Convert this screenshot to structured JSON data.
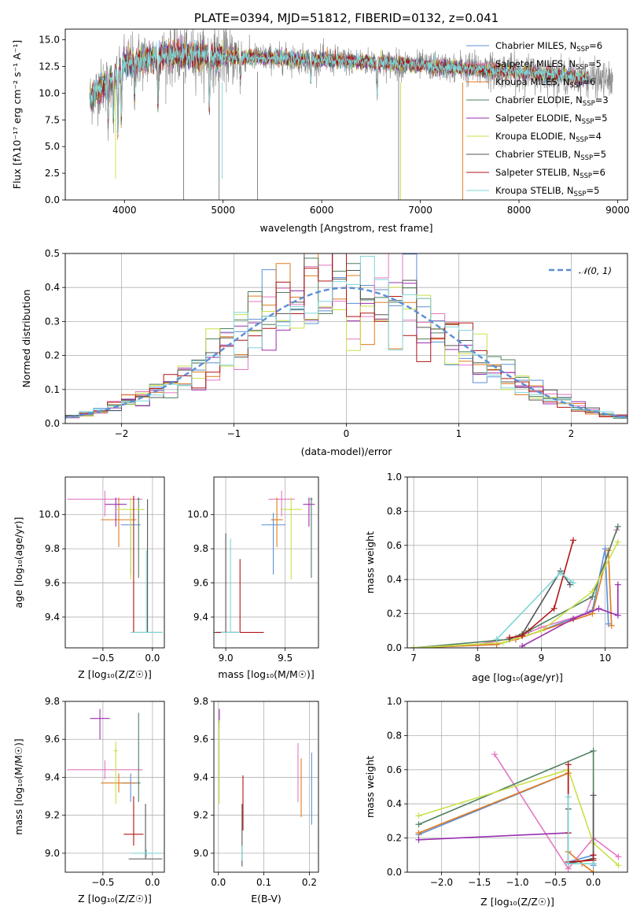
{
  "colors": {
    "chabrier_miles": "#5b8fd6",
    "salpeter_miles": "#e377c2",
    "kroupa_miles": "#e07a1f",
    "chabrier_elodie": "#4f7f5f",
    "salpeter_elodie": "#9a2fae",
    "kroupa_elodie": "#c9e04a",
    "chabrier_stelib": "#555555",
    "salpeter_stelib": "#b01515",
    "kroupa_stelib": "#7fd6d6",
    "observed": "#808080",
    "gauss": "#5b8fd6"
  },
  "chart_data": [
    {
      "id": "spectrum",
      "type": "line",
      "title": "PLATE=0394, MJD=51812, FIBERID=0132, z=0.041",
      "xlabel": "wavelength [Angstrom, rest frame]",
      "ylabel": "Flux [fλ10⁻¹⁷ erg cm⁻² s⁻¹ A⁻¹]",
      "xlim": [
        3400,
        9100
      ],
      "ylim": [
        0,
        16
      ],
      "xticks": [
        "4000",
        "5000",
        "6000",
        "7000",
        "8000",
        "9000"
      ],
      "yticks": [
        "0.0",
        "2.5",
        "5.0",
        "7.5",
        "10.0",
        "12.5",
        "15.0"
      ],
      "legend_position": "upper right",
      "legend": [
        "Chabrier MILES, N_SSP=6",
        "Salpeter MILES, N_SSP=5",
        "Kroupa MILES, N_SSP=6",
        "Chabrier ELODIE, N_SSP=3",
        "Salpeter ELODIE, N_SSP=5",
        "Kroupa ELODIE, N_SSP=4",
        "Chabrier STELIB, N_SSP=5",
        "Salpeter STELIB, N_SSP=6",
        "Kroupa STELIB, N_SSP=5"
      ],
      "continuum": [
        [
          3650,
          9.5
        ],
        [
          3750,
          10.5
        ],
        [
          3900,
          11.5
        ],
        [
          4000,
          12.8
        ],
        [
          4200,
          13.2
        ],
        [
          4500,
          13.6
        ],
        [
          5000,
          13.4
        ],
        [
          5500,
          13.3
        ],
        [
          6000,
          13.1
        ],
        [
          6500,
          12.9
        ],
        [
          7000,
          12.6
        ],
        [
          7500,
          12.3
        ],
        [
          8000,
          12.0
        ],
        [
          8500,
          11.6
        ],
        [
          8900,
          11.2
        ]
      ],
      "observed_range": [
        3650,
        8950
      ],
      "model_range": [
        3650,
        8700
      ]
    },
    {
      "id": "residuals",
      "type": "histogram",
      "xlabel": "(data-model)/error",
      "ylabel": "Normed distribution",
      "xlim": [
        -2.5,
        2.5
      ],
      "ylim": [
        0,
        0.5
      ],
      "xticks": [
        "−2",
        "−1",
        "0",
        "1",
        "2"
      ],
      "yticks": [
        "0.0",
        "0.1",
        "0.2",
        "0.3",
        "0.4",
        "0.5"
      ],
      "legend": [
        "N(0,1)"
      ],
      "legend_position": "upper right",
      "bin_width": 0.125
    },
    {
      "id": "age_vs_Z",
      "type": "errorbar",
      "xlabel": "Z [log10(Z/Z☉)]",
      "ylabel": "age  [log10(age/yr)]",
      "xlim": [
        -0.88,
        0.12
      ],
      "ylim": [
        9.22,
        10.22
      ],
      "xticks": [
        "−0.5",
        "0.0"
      ],
      "yticks": [
        "9.4",
        "9.6",
        "9.8",
        "10.0"
      ],
      "points": [
        {
          "s": "chabrier_miles",
          "x": -0.22,
          "y": 9.94,
          "xerr": 0.1,
          "yerr": [
            0.29,
            0.07
          ]
        },
        {
          "s": "salpeter_miles",
          "x": -0.48,
          "y": 10.09,
          "xerr": 0.38,
          "yerr": [
            0.1,
            0.05
          ]
        },
        {
          "s": "kroupa_miles",
          "x": -0.34,
          "y": 9.97,
          "xerr": 0.18,
          "yerr": [
            0.16,
            0.13
          ]
        },
        {
          "s": "chabrier_elodie",
          "x": -0.14,
          "y": 10.09,
          "xerr": 0.01,
          "yerr": [
            0.46,
            0.01
          ]
        },
        {
          "s": "salpeter_elodie",
          "x": -0.37,
          "y": 10.06,
          "xerr": 0.11,
          "yerr": [
            0.13,
            0.04
          ]
        },
        {
          "s": "kroupa_elodie",
          "x": -0.22,
          "y": 10.03,
          "xerr": 0.14,
          "yerr": [
            0.41,
            0.07
          ]
        },
        {
          "s": "chabrier_stelib",
          "x": -0.05,
          "y": 9.31,
          "xerr": 0.15,
          "yerr": [
            0.0,
            0.78
          ]
        },
        {
          "s": "salpeter_stelib",
          "x": -0.19,
          "y": 9.31,
          "xerr": 0.01,
          "yerr": [
            0.0,
            0.8
          ]
        },
        {
          "s": "kroupa_stelib",
          "x": -0.06,
          "y": 9.31,
          "xerr": 0.16,
          "yerr": [
            0.0,
            0.48
          ]
        }
      ]
    },
    {
      "id": "age_vs_mass",
      "type": "errorbar",
      "xlabel": "mass [log10(M/M☉)]",
      "ylabel": "",
      "xlim": [
        8.9,
        9.78
      ],
      "ylim": [
        9.22,
        10.22
      ],
      "xticks": [
        "9.0",
        "9.5"
      ],
      "yticks": [
        "9.4",
        "9.6",
        "9.8",
        "10.0"
      ],
      "points": [
        {
          "s": "chabrier_miles",
          "x": 9.4,
          "y": 9.94,
          "xerr": 0.1,
          "yerr": [
            0.29,
            0.07
          ]
        },
        {
          "s": "salpeter_miles",
          "x": 9.47,
          "y": 10.09,
          "xerr": 0.11,
          "yerr": [
            0.1,
            0.05
          ]
        },
        {
          "s": "kroupa_miles",
          "x": 9.43,
          "y": 9.97,
          "xerr": 0.05,
          "yerr": [
            0.16,
            0.13
          ]
        },
        {
          "s": "chabrier_elodie",
          "x": 9.72,
          "y": 10.09,
          "xerr": 0.01,
          "yerr": [
            0.46,
            0.01
          ]
        },
        {
          "s": "salpeter_elodie",
          "x": 9.7,
          "y": 10.06,
          "xerr": 0.05,
          "yerr": [
            0.13,
            0.04
          ]
        },
        {
          "s": "kroupa_elodie",
          "x": 9.55,
          "y": 10.03,
          "xerr": 0.09,
          "yerr": [
            0.41,
            0.07
          ]
        },
        {
          "s": "chabrier_stelib",
          "x": 9.0,
          "y": 9.31,
          "xerr": 0.1,
          "yerr": [
            0.0,
            0.58
          ]
        },
        {
          "s": "salpeter_stelib",
          "x": 9.12,
          "y": 9.31,
          "xerr": 0.2,
          "yerr": [
            0.0,
            0.43
          ]
        },
        {
          "s": "kroupa_stelib",
          "x": 9.04,
          "y": 9.31,
          "xerr": 0.08,
          "yerr": [
            0.0,
            0.55
          ]
        }
      ]
    },
    {
      "id": "weight_vs_age",
      "type": "line",
      "xlabel": "age  [log10(age/yr)]",
      "ylabel": "mass weight",
      "xlim": [
        6.9,
        10.35
      ],
      "ylim": [
        0,
        1
      ],
      "xticks": [
        "7",
        "8",
        "9",
        "10"
      ],
      "yticks": [
        "0.0",
        "0.2",
        "0.4",
        "0.6",
        "0.8",
        "1.0"
      ],
      "series": [
        {
          "s": "chabrier_miles",
          "x": [
            7.0,
            8.3,
            8.6,
            9.0,
            9.8,
            10.0,
            10.05
          ],
          "y": [
            0.0,
            0.02,
            0.05,
            0.1,
            0.22,
            0.58,
            0.14
          ]
        },
        {
          "s": "salpeter_miles",
          "x": [
            7.0,
            8.0,
            8.6,
            9.0,
            9.7,
            10.18
          ],
          "y": [
            0.0,
            0.02,
            0.06,
            0.12,
            0.2,
            0.69
          ]
        },
        {
          "s": "kroupa_miles",
          "x": [
            7.0,
            8.3,
            8.6,
            9.0,
            9.8,
            10.05,
            10.1
          ],
          "y": [
            0.0,
            0.02,
            0.05,
            0.1,
            0.2,
            0.57,
            0.13
          ]
        },
        {
          "s": "chabrier_elodie",
          "x": [
            7.0,
            8.5,
            8.8,
            9.8,
            10.2
          ],
          "y": [
            0.0,
            0.05,
            0.1,
            0.3,
            0.71
          ]
        },
        {
          "s": "salpeter_elodie",
          "x": [
            8.7,
            9.5,
            9.9,
            10.2,
            10.2
          ],
          "y": [
            0.01,
            0.17,
            0.23,
            0.19,
            0.37
          ]
        },
        {
          "s": "kroupa_elodie",
          "x": [
            7.0,
            8.4,
            9.0,
            9.8,
            10.2
          ],
          "y": [
            0.0,
            0.03,
            0.1,
            0.33,
            0.62
          ]
        },
        {
          "s": "chabrier_stelib",
          "x": [
            8.7,
            9.3,
            9.45
          ],
          "y": [
            0.08,
            0.45,
            0.37
          ]
        },
        {
          "s": "salpeter_stelib",
          "x": [
            8.5,
            8.7,
            9.2,
            9.5
          ],
          "y": [
            0.06,
            0.07,
            0.23,
            0.63
          ]
        },
        {
          "s": "kroupa_stelib",
          "x": [
            8.3,
            9.3,
            9.5
          ],
          "y": [
            0.05,
            0.44,
            0.38
          ]
        }
      ]
    },
    {
      "id": "mass_vs_Z",
      "type": "errorbar",
      "xlabel": "Z [log10(Z/Z☉)]",
      "ylabel": "mass [log10(M/M☉)]",
      "xlim": [
        -0.88,
        0.12
      ],
      "ylim": [
        8.9,
        9.8
      ],
      "xticks": [
        "−0.5",
        "0.0"
      ],
      "yticks": [
        "9.0",
        "9.2",
        "9.4",
        "9.6",
        "9.8"
      ],
      "points": [
        {
          "s": "chabrier_miles",
          "x": -0.22,
          "y": 9.37,
          "xerr": 0.1,
          "yerr": [
            0.1,
            0.05
          ]
        },
        {
          "s": "salpeter_miles",
          "x": -0.48,
          "y": 9.44,
          "xerr": 0.38,
          "yerr": [
            0.05,
            0.05
          ]
        },
        {
          "s": "kroupa_miles",
          "x": -0.34,
          "y": 9.37,
          "xerr": 0.18,
          "yerr": [
            0.05,
            0.05
          ]
        },
        {
          "s": "chabrier_elodie",
          "x": -0.14,
          "y": 9.37,
          "xerr": 0.01,
          "yerr": [
            0.1,
            0.37
          ]
        },
        {
          "s": "salpeter_elodie",
          "x": -0.53,
          "y": 9.71,
          "xerr": 0.1,
          "yerr": [
            0.11,
            0.05
          ]
        },
        {
          "s": "kroupa_elodie",
          "x": -0.37,
          "y": 9.54,
          "xerr": 0.02,
          "yerr": [
            0.28,
            0.05
          ]
        },
        {
          "s": "chabrier_stelib",
          "x": -0.07,
          "y": 8.97,
          "xerr": 0.17,
          "yerr": [
            0.0,
            0.29
          ]
        },
        {
          "s": "salpeter_stelib",
          "x": -0.19,
          "y": 9.1,
          "xerr": 0.1,
          "yerr": [
            0.06,
            0.2
          ]
        },
        {
          "s": "kroupa_stelib",
          "x": -0.06,
          "y": 9.0,
          "xerr": 0.15,
          "yerr": [
            0.02,
            0.02
          ]
        }
      ]
    },
    {
      "id": "mass_vs_ebv",
      "type": "errorbar",
      "xlabel": "E(B-V)",
      "ylabel": "",
      "xlim": [
        -0.01,
        0.22
      ],
      "ylim": [
        8.9,
        9.8
      ],
      "xticks": [
        "0.0",
        "0.1",
        "0.2"
      ],
      "yticks": [
        "9.0",
        "9.2",
        "9.4",
        "9.6",
        "9.8"
      ],
      "points": [
        {
          "s": "chabrier_miles",
          "x": 0.205,
          "y": 9.37,
          "xerr": 0,
          "yerr": [
            0.22,
            0.16
          ]
        },
        {
          "s": "salpeter_miles",
          "x": 0.175,
          "y": 9.44,
          "xerr": 0,
          "yerr": [
            0.17,
            0.14
          ]
        },
        {
          "s": "kroupa_miles",
          "x": 0.182,
          "y": 9.37,
          "xerr": 0,
          "yerr": [
            0.18,
            0.13
          ]
        },
        {
          "s": "chabrier_elodie",
          "x": 0.002,
          "y": 9.71,
          "xerr": 0,
          "yerr": [
            0.05,
            0.05
          ]
        },
        {
          "s": "salpeter_elodie",
          "x": 0.002,
          "y": 9.71,
          "xerr": 0,
          "yerr": [
            0.03,
            0.05
          ]
        },
        {
          "s": "kroupa_elodie",
          "x": 0.002,
          "y": 9.54,
          "xerr": 0,
          "yerr": [
            0.28,
            0.16
          ]
        },
        {
          "s": "chabrier_stelib",
          "x": 0.052,
          "y": 9.1,
          "xerr": 0,
          "yerr": [
            0.17,
            0.16
          ]
        },
        {
          "s": "salpeter_stelib",
          "x": 0.054,
          "y": 9.22,
          "xerr": 0,
          "yerr": [
            0.1,
            0.19
          ]
        },
        {
          "s": "kroupa_stelib",
          "x": 0.052,
          "y": 9.0,
          "xerr": 0,
          "yerr": [
            0.04,
            0.04
          ]
        }
      ]
    },
    {
      "id": "weight_vs_Z",
      "type": "line",
      "xlabel": "Z [log10(Z/Z☉)]",
      "ylabel": "mass weight",
      "xlim": [
        -2.45,
        0.45
      ],
      "ylim": [
        0,
        1
      ],
      "xticks": [
        "−2.0",
        "−1.5",
        "−1.0",
        "−0.5",
        "0.0"
      ],
      "yticks": [
        "0.0",
        "0.2",
        "0.4",
        "0.6",
        "0.8",
        "1.0"
      ],
      "series": [
        {
          "s": "chabrier_miles",
          "x": [
            -2.3,
            -0.33,
            -0.33,
            0.0,
            0.0
          ],
          "y": [
            0.22,
            0.58,
            0.06,
            0.1,
            0.04
          ]
        },
        {
          "s": "salpeter_miles",
          "x": [
            -1.3,
            -0.33,
            0.0,
            0.33
          ],
          "y": [
            0.69,
            0.02,
            0.2,
            0.09
          ]
        },
        {
          "s": "kroupa_miles",
          "x": [
            -2.3,
            -0.33,
            -0.33,
            -0.15,
            0.0
          ],
          "y": [
            0.23,
            0.58,
            0.12,
            0.05,
            0.0
          ]
        },
        {
          "s": "chabrier_elodie",
          "x": [
            -2.3,
            0.0,
            0.0
          ],
          "y": [
            0.28,
            0.71,
            0.05
          ]
        },
        {
          "s": "salpeter_elodie",
          "x": [
            -2.3,
            -0.33
          ],
          "y": [
            0.19,
            0.23
          ]
        },
        {
          "s": "kroupa_elodie",
          "x": [
            -2.3,
            -0.33,
            0.0,
            0.33
          ],
          "y": [
            0.33,
            0.6,
            0.17,
            0.04
          ]
        },
        {
          "s": "chabrier_stelib",
          "x": [
            -0.33,
            -0.33,
            0.0,
            0.0
          ],
          "y": [
            0.37,
            0.05,
            0.08,
            0.45
          ]
        },
        {
          "s": "salpeter_stelib",
          "x": [
            -0.33,
            -0.33,
            -0.33,
            0.0,
            0.0
          ],
          "y": [
            0.63,
            0.23,
            0.06,
            0.07,
            0.1
          ]
        },
        {
          "s": "kroupa_stelib",
          "x": [
            -0.33,
            -0.33,
            0.0
          ],
          "y": [
            0.44,
            0.05,
            0.05
          ]
        }
      ]
    }
  ]
}
